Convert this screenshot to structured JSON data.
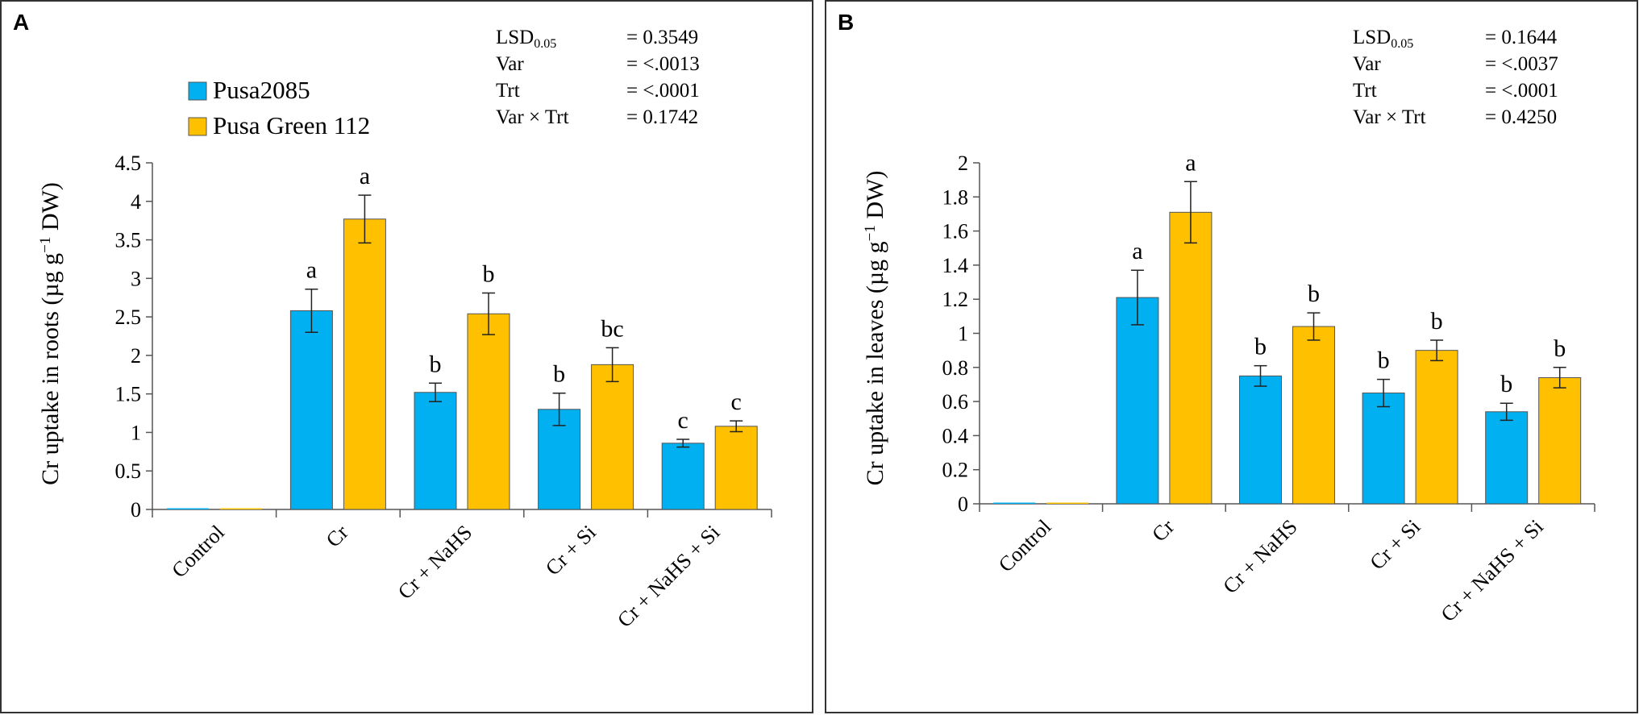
{
  "chart_data": [
    {
      "panel": "A",
      "type": "bar",
      "ylabel": "Cr uptake in roots (µg g",
      "ylabel_sup": "−1",
      "ylabel_tail": " DW)",
      "ylim": [
        0,
        4.5
      ],
      "yticks": [
        0,
        0.5,
        1,
        1.5,
        2,
        2.5,
        3,
        3.5,
        4,
        4.5
      ],
      "ytick_labels": [
        "0",
        "0.5",
        "1",
        "1.5",
        "2",
        "2.5",
        "3",
        "3.5",
        "4",
        "4.5"
      ],
      "categories": [
        "Control",
        "Cr",
        "Cr + NaHS",
        "Cr + Si",
        "Cr + NaHS + Si"
      ],
      "series": [
        {
          "name": "Pusa2085",
          "color": "#00b0f0",
          "values": [
            0.01,
            2.58,
            1.52,
            1.3,
            0.86
          ],
          "errors": [
            0,
            0.28,
            0.12,
            0.21,
            0.05
          ],
          "letters": [
            "",
            "a",
            "b",
            "b",
            "c"
          ]
        },
        {
          "name": "Pusa Green 112",
          "color": "#ffc000",
          "values": [
            0.01,
            3.77,
            2.54,
            1.88,
            1.08
          ],
          "errors": [
            0,
            0.31,
            0.27,
            0.22,
            0.07
          ],
          "letters": [
            "",
            "a",
            "b",
            "bc",
            "c"
          ]
        }
      ],
      "stats": [
        {
          "label": "LSD",
          "sub": "0.05",
          "value": "= 0.3549"
        },
        {
          "label": "Var",
          "sub": "",
          "value": "= <.0013"
        },
        {
          "label": "Trt",
          "sub": "",
          "value": "= <.0001"
        },
        {
          "label": "Var × Trt",
          "sub": "",
          "value": "= 0.1742"
        }
      ],
      "legend": "top-left"
    },
    {
      "panel": "B",
      "type": "bar",
      "ylabel": "Cr uptake in leaves (µg g",
      "ylabel_sup": "−1",
      "ylabel_tail": " DW)",
      "ylim": [
        0,
        2
      ],
      "yticks": [
        0,
        0.2,
        0.4,
        0.6,
        0.8,
        1,
        1.2,
        1.4,
        1.6,
        1.8,
        2
      ],
      "ytick_labels": [
        "0",
        "0.2",
        "0.4",
        "0.6",
        "0.8",
        "1",
        "1.2",
        "1.4",
        "1.6",
        "1.8",
        "2"
      ],
      "categories": [
        "Control",
        "Cr",
        "Cr + NaHS",
        "Cr + Si",
        "Cr + NaHS + Si"
      ],
      "series": [
        {
          "name": "Pusa2085",
          "color": "#00b0f0",
          "values": [
            0,
            1.21,
            0.75,
            0.65,
            0.54
          ],
          "errors": [
            0,
            0.16,
            0.06,
            0.08,
            0.05
          ],
          "letters": [
            "",
            "a",
            "b",
            "b",
            "b"
          ]
        },
        {
          "name": "Pusa Green 112",
          "color": "#ffc000",
          "values": [
            0,
            1.71,
            1.04,
            0.9,
            0.74
          ],
          "errors": [
            0,
            0.18,
            0.08,
            0.06,
            0.06
          ],
          "letters": [
            "",
            "a",
            "b",
            "b",
            "b"
          ]
        }
      ],
      "stats": [
        {
          "label": "LSD",
          "sub": "0.05",
          "value": "= 0.1644"
        },
        {
          "label": "Var",
          "sub": "",
          "value": "= <.0037"
        },
        {
          "label": "Trt",
          "sub": "",
          "value": "= <.0001"
        },
        {
          "label": "Var × Trt",
          "sub": "",
          "value": "= 0.4250"
        }
      ]
    }
  ]
}
